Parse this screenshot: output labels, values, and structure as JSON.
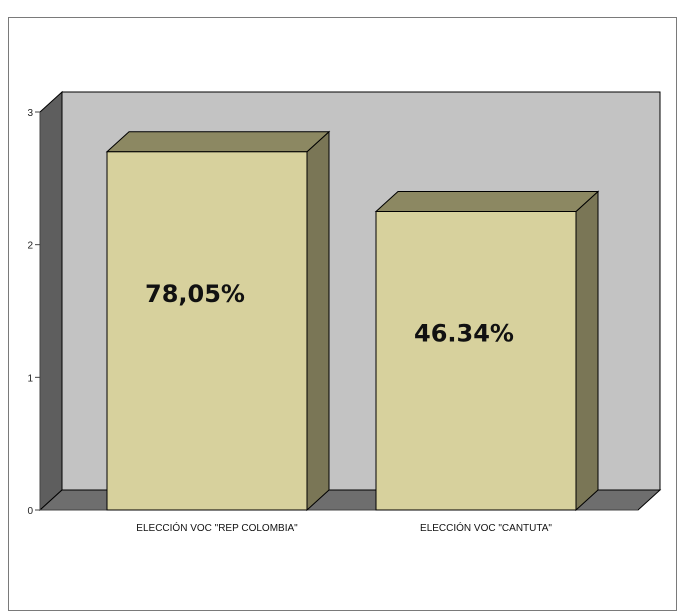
{
  "chart_data": {
    "type": "bar",
    "categories": [
      "ELECCIÓN VOC \"REP COLOMBIA\"",
      "ELECCIÓN VOC \"CANTUTA\""
    ],
    "values": [
      2.7,
      2.25
    ],
    "data_labels": [
      "78,05%",
      "46.34%"
    ],
    "ylim": [
      0,
      3
    ],
    "yticks": [
      "0",
      "1",
      "2",
      "3"
    ],
    "style": "3d",
    "grid": false,
    "legend": "none",
    "title": "",
    "xlabel": "",
    "ylabel": ""
  },
  "colors": {
    "bar_front": "#d7d19d",
    "bar_top": "#8c8862",
    "bar_side": "#7a7656",
    "back_wall": "#c3c3c3",
    "left_wall": "#5e5e5e",
    "floor": "#6e6e6e",
    "outline": "#000000"
  }
}
